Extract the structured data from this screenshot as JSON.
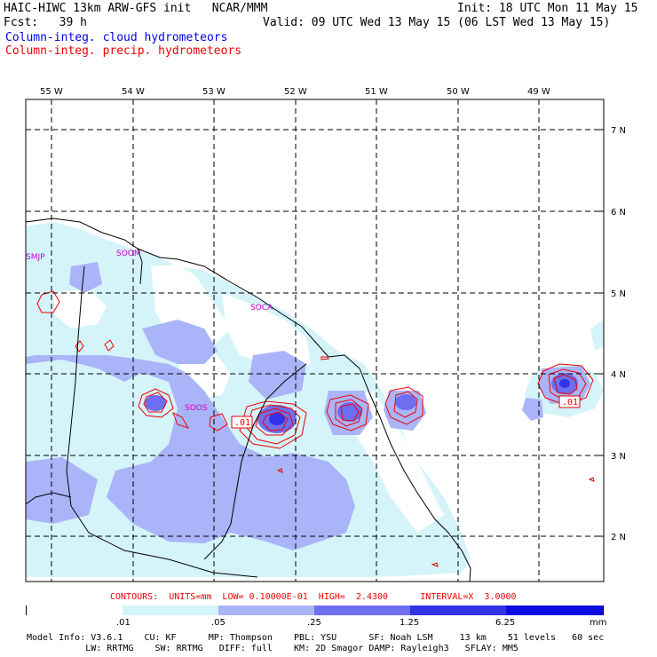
{
  "header": {
    "title": "HAIC-HIWC 13km ARW-GFS init   NCAR/MMM",
    "init": "Init: 18 UTC Mon 11 May 15",
    "fcst": "Fcst:   39 h",
    "valid": "Valid: 09 UTC Wed 13 May 15 (06 LST Wed 13 May 15)",
    "legend_cloud": "Column-integ. cloud hydrometeors",
    "legend_precip": "Column-integ. precip. hydrometeors",
    "legend_cloud_color": "#0000ee",
    "legend_precip_color": "#ee0000"
  },
  "map": {
    "lon_labels": [
      "55 W",
      "54 W",
      "53 W",
      "52 W",
      "51 W",
      "50 W",
      "49 W"
    ],
    "lat_labels": [
      "7 N",
      "6 N",
      "5 N",
      "4 N",
      "3 N",
      "2 N"
    ],
    "stations": [
      "SMJP",
      "SOOM",
      "SOCA",
      "SOOS"
    ],
    "contour_labels": [
      ".01",
      ".01"
    ]
  },
  "contour_info": "CONTOURS:  UNITS=mm  LOW= 0.10000E-01  HIGH=  2.4300      INTERVAL=X  3.0000",
  "colorbar": {
    "ticks": [
      ".01",
      ".05",
      ".25",
      "1.25",
      "6.25"
    ],
    "units": "mm",
    "colors": [
      "#ffffff",
      "#d4f4fa",
      "#aab4f8",
      "#6e6ef0",
      "#3232e6",
      "#0c0ce0"
    ]
  },
  "model_info": {
    "line1": "Model Info: V3.6.1    CU: KF      MP: Thompson    PBL: YSU      SF: Noah LSM     13 km    51 levels   60 sec",
    "line2": "           LW: RRTMG    SW: RRTMG   DIFF: full    KM: 2D Smagor DAMP: Rayleigh3   SFLAY: MM5"
  }
}
